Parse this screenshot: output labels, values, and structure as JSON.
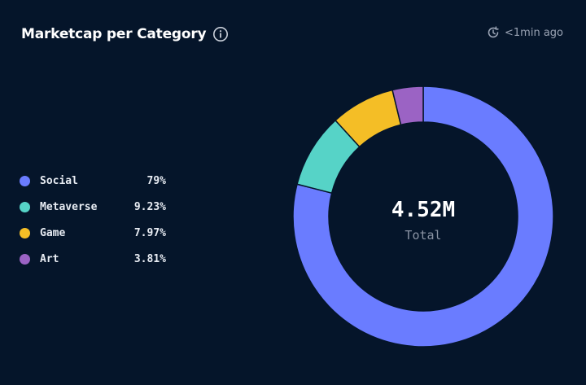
{
  "header": {
    "title": "Marketcap per Category",
    "updated": "<1min ago"
  },
  "icons": {
    "info": "info-icon",
    "refresh_clock": "clock-refresh-icon"
  },
  "chart_data": {
    "type": "pie",
    "title": "Marketcap per Category",
    "center_value": "4.52M",
    "center_label": "Total",
    "legend_position": "left",
    "slices": [
      {
        "label": "Social",
        "value": 79,
        "display": "79%",
        "color": "#6a7cff"
      },
      {
        "label": "Metaverse",
        "value": 9.23,
        "display": "9.23%",
        "color": "#56d3c7"
      },
      {
        "label": "Game",
        "value": 7.97,
        "display": "7.97%",
        "color": "#f4be26"
      },
      {
        "label": "Art",
        "value": 3.81,
        "display": "3.81%",
        "color": "#9b63c4"
      }
    ]
  }
}
